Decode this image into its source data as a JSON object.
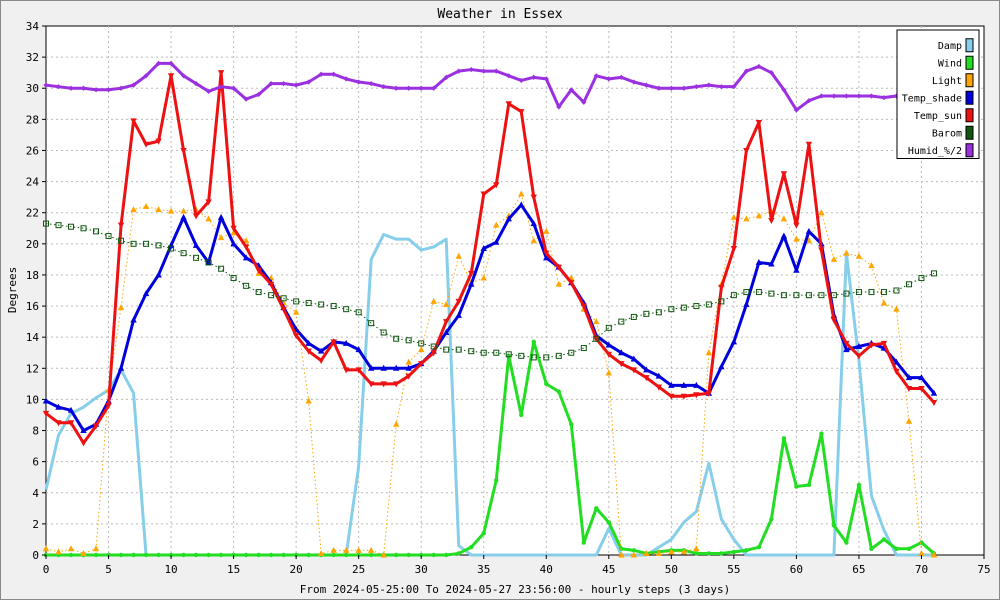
{
  "chart_data": {
    "type": "line",
    "title": "Weather in Essex",
    "xlabel": "From 2024-05-25:00 To 2024-05-27 23:56:00 - hourly steps (3 days)",
    "ylabel": "Degrees",
    "xlim": [
      0,
      75
    ],
    "ylim": [
      0,
      34
    ],
    "x_ticks": [
      0,
      5,
      10,
      15,
      20,
      25,
      30,
      35,
      40,
      45,
      50,
      55,
      60,
      65,
      70,
      75
    ],
    "y_ticks": [
      0,
      2,
      4,
      6,
      8,
      10,
      12,
      14,
      16,
      18,
      20,
      22,
      24,
      26,
      28,
      30,
      32,
      34
    ],
    "grid": true,
    "legend_position": "top-right",
    "series": [
      {
        "name": "Damp",
        "color": "#87ceeb",
        "marker": "none",
        "style": "solid",
        "width": 3,
        "values": [
          4.2,
          7.7,
          9.1,
          9.5,
          10.1,
          10.6,
          11.9,
          10.4,
          0,
          0,
          0,
          0,
          0,
          0,
          0,
          0,
          0,
          0,
          0,
          0,
          0,
          0,
          0,
          0,
          0,
          5.7,
          19,
          20.6,
          20.3,
          20.3,
          19.6,
          19.8,
          20.3,
          0.6,
          0,
          0,
          0,
          0,
          0,
          0,
          0,
          0,
          0,
          0,
          0,
          1.7,
          0,
          0,
          0,
          0.5,
          1,
          2.1,
          2.8,
          5.9,
          2.3,
          1,
          0,
          0,
          0,
          0,
          0,
          0,
          0,
          0,
          19.4,
          12.5,
          3.8,
          1.6,
          0,
          0,
          0,
          0
        ]
      },
      {
        "name": "Wind",
        "color": "#22dd22",
        "marker": "circle",
        "style": "solid",
        "width": 3,
        "values": [
          0,
          0,
          0,
          0,
          0,
          0,
          0,
          0,
          0,
          0,
          0,
          0,
          0,
          0,
          0,
          0,
          0,
          0,
          0,
          0,
          0,
          0,
          0,
          0,
          0,
          0,
          0,
          0,
          0,
          0,
          0,
          0,
          0,
          0.1,
          0.5,
          1.4,
          4.8,
          12.8,
          9,
          13.7,
          11,
          10.5,
          8.4,
          0.8,
          3,
          2.1,
          0.4,
          0.3,
          0.1,
          0.2,
          0.3,
          0.3,
          0.1,
          0.1,
          0.1,
          0.2,
          0.3,
          0.5,
          2.3,
          7.5,
          4.4,
          4.5,
          7.8,
          1.9,
          0.8,
          4.5,
          0.4,
          1,
          0.4,
          0.4,
          0.8,
          0.1
        ]
      },
      {
        "name": "Light",
        "color": "#ffa500",
        "marker": "triangle-up",
        "style": "dotted",
        "width": 1,
        "values": [
          0.4,
          0.2,
          0.4,
          0.1,
          0.4,
          10.6,
          15.9,
          22.2,
          22.4,
          22.2,
          22.1,
          22.1,
          22.2,
          21.6,
          20.4,
          20.7,
          20.2,
          18.1,
          17.8,
          16.2,
          15.6,
          9.9,
          0.1,
          0.3,
          0.3,
          0.3,
          0.3,
          0,
          8.4,
          12.4,
          13.2,
          16.3,
          16.1,
          19.2,
          17.5,
          17.8,
          21.2,
          21.8,
          23.2,
          20.2,
          20.8,
          17.4,
          17.8,
          15.8,
          15,
          11.7,
          0,
          0,
          0.1,
          0.1,
          0.2,
          0.2,
          0.4,
          13,
          17.4,
          21.7,
          21.6,
          21.8,
          22.1,
          21.6,
          20.3,
          20.2,
          22,
          19,
          19.4,
          19.2,
          18.6,
          16.2,
          15.8,
          8.6,
          0.1,
          0
        ]
      },
      {
        "name": "Temp_shade",
        "color": "#0000dd",
        "marker": "triangle-up",
        "style": "solid",
        "width": 3,
        "values": [
          9.9,
          9.5,
          9.3,
          8,
          8.4,
          9.9,
          12,
          15.1,
          16.8,
          18,
          19.9,
          21.7,
          19.9,
          18.8,
          21.7,
          20,
          19.1,
          18.6,
          17.5,
          15.9,
          14.5,
          13.6,
          13.1,
          13.7,
          13.6,
          13.2,
          12,
          12,
          12,
          12,
          12.3,
          13.1,
          14.3,
          15.4,
          17.4,
          19.7,
          20.1,
          21.6,
          22.5,
          21.3,
          19.1,
          18.5,
          17.5,
          16.2,
          14.1,
          13.5,
          13,
          12.6,
          11.9,
          11.5,
          10.9,
          10.9,
          10.9,
          10.4,
          12.1,
          13.7,
          16.1,
          18.8,
          18.7,
          20.5,
          18.3,
          20.8,
          20,
          15.4,
          13.2,
          13.4,
          13.6,
          13.3,
          12.4,
          11.4,
          11.4,
          10.4
        ]
      },
      {
        "name": "Temp_sun",
        "color": "#ee1111",
        "marker": "triangle-down",
        "style": "solid",
        "width": 3,
        "values": [
          9.1,
          8.5,
          8.5,
          7.2,
          8.3,
          9.6,
          21.2,
          27.9,
          26.4,
          26.6,
          30.8,
          26,
          21.8,
          22.7,
          31,
          21,
          19.8,
          18.3,
          17.4,
          15.8,
          14.1,
          13.1,
          12.5,
          13.7,
          11.9,
          11.9,
          11,
          11,
          11,
          11.5,
          12.3,
          13,
          15,
          16.3,
          18.1,
          23.2,
          23.8,
          29,
          28.5,
          23,
          19.4,
          18.5,
          17.5,
          16,
          13.9,
          12.9,
          12.3,
          11.9,
          11.4,
          10.8,
          10.2,
          10.2,
          10.3,
          10.4,
          17.2,
          19.7,
          26,
          27.8,
          21.5,
          24.5,
          21.2,
          26.4,
          19.6,
          15.1,
          13.6,
          12.8,
          13.5,
          13.6,
          11.8,
          10.7,
          10.7,
          9.8
        ]
      },
      {
        "name": "Barom",
        "color": "#115511",
        "marker": "square-open",
        "style": "dotted",
        "width": 1,
        "values": [
          21.3,
          21.2,
          21.1,
          21,
          20.8,
          20.5,
          20.2,
          20,
          20,
          19.9,
          19.7,
          19.4,
          19.1,
          18.8,
          18.4,
          17.8,
          17.3,
          16.9,
          16.7,
          16.5,
          16.3,
          16.2,
          16.1,
          16,
          15.8,
          15.6,
          14.9,
          14.3,
          13.9,
          13.8,
          13.6,
          13.4,
          13.2,
          13.2,
          13.1,
          13,
          13,
          12.9,
          12.8,
          12.7,
          12.7,
          12.8,
          13,
          13.3,
          13.9,
          14.6,
          15,
          15.3,
          15.5,
          15.6,
          15.8,
          15.9,
          16,
          16.1,
          16.3,
          16.7,
          16.9,
          16.9,
          16.8,
          16.7,
          16.7,
          16.7,
          16.7,
          16.7,
          16.8,
          16.9,
          16.9,
          16.9,
          17,
          17.4,
          17.8,
          18.1
        ]
      },
      {
        "name": "Humid_%/2",
        "color": "#9b30e0",
        "marker": "diamond",
        "style": "solid",
        "width": 3,
        "values": [
          30.2,
          30.1,
          30,
          30,
          29.9,
          29.9,
          30,
          30.2,
          30.8,
          31.6,
          31.6,
          30.8,
          30.3,
          29.8,
          30.1,
          30,
          29.3,
          29.6,
          30.3,
          30.3,
          30.2,
          30.4,
          30.9,
          30.9,
          30.6,
          30.4,
          30.3,
          30.1,
          30,
          30,
          30,
          30,
          30.7,
          31.1,
          31.2,
          31.1,
          31.1,
          30.8,
          30.5,
          30.7,
          30.6,
          28.8,
          29.9,
          29.1,
          30.8,
          30.6,
          30.7,
          30.4,
          30.2,
          30,
          30,
          30,
          30.1,
          30.2,
          30.1,
          30.1,
          31.1,
          31.4,
          31,
          29.9,
          28.6,
          29.2,
          29.5,
          29.5,
          29.5,
          29.5,
          29.5,
          29.4,
          29.5,
          29.5,
          29.5
        ]
      }
    ]
  }
}
